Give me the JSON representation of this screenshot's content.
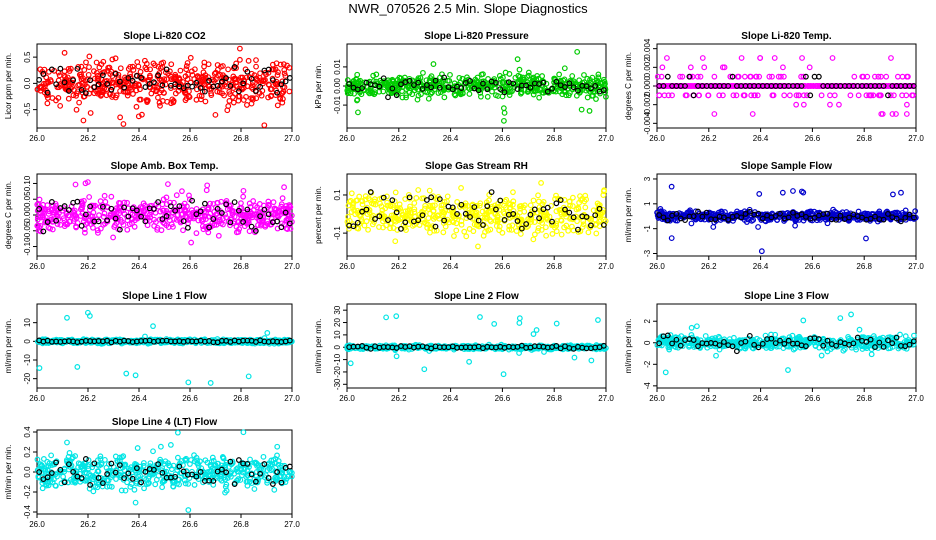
{
  "figure": {
    "title": "NWR_070526  2.5 Min. Slope Diagnostics"
  },
  "chart_data": [
    {
      "type": "scatter",
      "title": "Slope Li-820 CO2",
      "ylabel": "Licor ppm per min.",
      "color": "#ff0000",
      "xlim": [
        26.0,
        27.0
      ],
      "ylim": [
        -0.85,
        0.75
      ],
      "xticks": [
        26.0,
        26.2,
        26.4,
        26.6,
        26.8,
        27.0
      ],
      "yticks": [
        -0.5,
        0.0,
        0.5
      ],
      "ytick_labels": [
        "-0.5",
        "0.0",
        "0.5"
      ],
      "spread": 0.35,
      "outlier_range": [
        -0.8,
        0.7
      ],
      "black_spread": 0.22
    },
    {
      "type": "scatter",
      "title": "Slope Li-820 Pressure",
      "ylabel": "kPa per min.",
      "color": "#00cc00",
      "xlim": [
        26.0,
        27.0
      ],
      "ylim": [
        -0.022,
        0.022
      ],
      "xticks": [
        26.0,
        26.2,
        26.4,
        26.6,
        26.8,
        27.0
      ],
      "yticks": [
        -0.01,
        0.0,
        0.01
      ],
      "ytick_labels": [
        "-0.01",
        "0.00",
        "0.01"
      ],
      "spread": 0.005,
      "outlier_range": [
        -0.02,
        0.02
      ],
      "black_spread": 0.004
    },
    {
      "type": "scatter",
      "title": "Slope Li-820 Temp.",
      "ylabel": "degrees C per min.",
      "color": "#ff00ff",
      "xlim": [
        26.0,
        27.0
      ],
      "ylim": [
        -0.0045,
        0.0045
      ],
      "xticks": [
        26.0,
        26.2,
        26.4,
        26.6,
        26.8,
        27.0
      ],
      "yticks": [
        -0.004,
        -0.002,
        0.0,
        0.002,
        0.004
      ],
      "ytick_labels": [
        "-0.004",
        "-0.002",
        "0.000",
        "0.002",
        "0.004"
      ],
      "spread": 0.0,
      "outlier_range": [
        -0.004,
        0.004
      ],
      "black_spread": 0.0,
      "quantized": 0.001
    },
    {
      "type": "scatter",
      "title": "Slope Amb. Box Temp.",
      "ylabel": "degrees C per min.",
      "color": "#ff00ff",
      "xlim": [
        26.0,
        27.0
      ],
      "ylim": [
        -0.13,
        0.13
      ],
      "xticks": [
        26.0,
        26.2,
        26.4,
        26.6,
        26.8,
        27.0
      ],
      "yticks": [
        -0.1,
        -0.05,
        0.0,
        0.05,
        0.1
      ],
      "ytick_labels": [
        "-0.10",
        "-0.05",
        "0.00",
        "0.05",
        "0.10"
      ],
      "spread": 0.045,
      "outlier_range": [
        -0.12,
        0.12
      ],
      "black_spread": 0.05
    },
    {
      "type": "scatter",
      "title": "Slope Gas Stream RH",
      "ylabel": "percent per min.",
      "color": "#ffff00",
      "xlim": [
        26.0,
        27.0
      ],
      "ylim": [
        -0.22,
        0.21
      ],
      "xticks": [
        26.0,
        26.2,
        26.4,
        26.6,
        26.8,
        27.0
      ],
      "yticks": [
        -0.1,
        0.1
      ],
      "ytick_labels": [
        "-0.1",
        "0.1"
      ],
      "spread": 0.09,
      "outlier_range": [
        -0.2,
        0.2
      ],
      "black_spread": 0.09
    },
    {
      "type": "scatter",
      "title": "Slope Sample Flow",
      "ylabel": "ml/min per min.",
      "color": "#0000cc",
      "xlim": [
        26.0,
        27.0
      ],
      "ylim": [
        -3.2,
        3.4
      ],
      "xticks": [
        26.0,
        26.2,
        26.4,
        26.6,
        26.8,
        27.0
      ],
      "yticks": [
        -3,
        -1,
        1,
        3
      ],
      "ytick_labels": [
        "-3",
        "-1",
        "1",
        "3"
      ],
      "spread": 0.35,
      "outlier_range": [
        -3.0,
        3.0
      ],
      "black_spread": 0.35
    },
    {
      "type": "scatter",
      "title": "Slope Line 1 Flow",
      "ylabel": "ml/min per min.",
      "color": "#00e5e5",
      "xlim": [
        26.0,
        27.0
      ],
      "ylim": [
        -25,
        20
      ],
      "xticks": [
        26.0,
        26.2,
        26.4,
        26.6,
        26.8,
        27.0
      ],
      "yticks": [
        -20,
        -10,
        0,
        10
      ],
      "ytick_labels": [
        "-20",
        "-10",
        "0",
        "10"
      ],
      "spread": 1.0,
      "outlier_range": [
        -23,
        18
      ],
      "black_spread": 0.5
    },
    {
      "type": "scatter",
      "title": "Slope Line 2 Flow",
      "ylabel": "ml/min per min.",
      "color": "#00e5e5",
      "xlim": [
        26.0,
        27.0
      ],
      "ylim": [
        -33,
        35
      ],
      "xticks": [
        26.0,
        26.2,
        26.4,
        26.6,
        26.8,
        27.0
      ],
      "yticks": [
        -30,
        -20,
        -10,
        0,
        10,
        20,
        30
      ],
      "ytick_labels": [
        "-30",
        "-20",
        "-10",
        "0",
        "10",
        "20",
        "30"
      ],
      "spread": 1.5,
      "outlier_range": [
        -30,
        30
      ],
      "black_spread": 1.0
    },
    {
      "type": "scatter",
      "title": "Slope Line 3 Flow",
      "ylabel": "ml/min per min.",
      "color": "#00e5e5",
      "xlim": [
        26.0,
        27.0
      ],
      "ylim": [
        -4.2,
        3.6
      ],
      "xticks": [
        26.0,
        26.2,
        26.4,
        26.6,
        26.8,
        27.0
      ],
      "yticks": [
        -4,
        -2,
        0,
        2
      ],
      "ytick_labels": [
        "-4",
        "-2",
        "0",
        "2"
      ],
      "spread": 0.5,
      "outlier_range": [
        -3.0,
        3.2
      ],
      "black_spread": 0.5
    },
    {
      "type": "scatter",
      "title": "Slope Line 4 (LT) Flow",
      "ylabel": "ml/min per min.",
      "color": "#00e5e5",
      "xlim": [
        26.0,
        27.0
      ],
      "ylim": [
        -0.42,
        0.42
      ],
      "xticks": [
        26.0,
        26.2,
        26.4,
        26.6,
        26.8,
        27.0
      ],
      "yticks": [
        -0.4,
        -0.2,
        0.0,
        0.2,
        0.4
      ],
      "ytick_labels": [
        "-0.4",
        "-0.2",
        "0.0",
        "0.2",
        "0.4"
      ],
      "spread": 0.14,
      "outlier_range": [
        -0.4,
        0.4
      ],
      "black_spread": 0.13
    }
  ]
}
